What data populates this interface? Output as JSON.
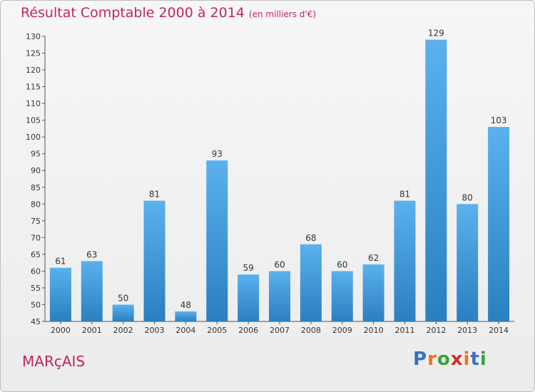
{
  "title": "Résultat Comptable 2000 à 2014",
  "subtitle": "(en milliers d'€)",
  "place": "MARçAIS",
  "logo": {
    "text": "Proxiti",
    "letter_colors": [
      "#3a6fc4",
      "#e8761c",
      "#3aa33a",
      "#d22e2e",
      "#e8761c",
      "#3a6fc4",
      "#3aa33a"
    ]
  },
  "colors": {
    "bar_light": "#5ab1ee",
    "bar_dark": "#2a7fc0",
    "title": "#c0265a"
  },
  "chart_data": {
    "type": "bar",
    "categories": [
      "2000",
      "2001",
      "2002",
      "2003",
      "2004",
      "2005",
      "2006",
      "2007",
      "2008",
      "2009",
      "2010",
      "2011",
      "2012",
      "2013",
      "2014"
    ],
    "values": [
      61,
      63,
      50,
      81,
      48,
      93,
      59,
      60,
      68,
      60,
      62,
      81,
      129,
      80,
      103
    ],
    "ylim": [
      45,
      130
    ],
    "yticks": [
      45,
      50,
      55,
      60,
      65,
      70,
      75,
      80,
      85,
      90,
      95,
      100,
      105,
      110,
      115,
      120,
      125,
      130
    ],
    "grid": false,
    "title": "Résultat Comptable 2000 à 2014",
    "unit": "(en milliers d'€)"
  }
}
